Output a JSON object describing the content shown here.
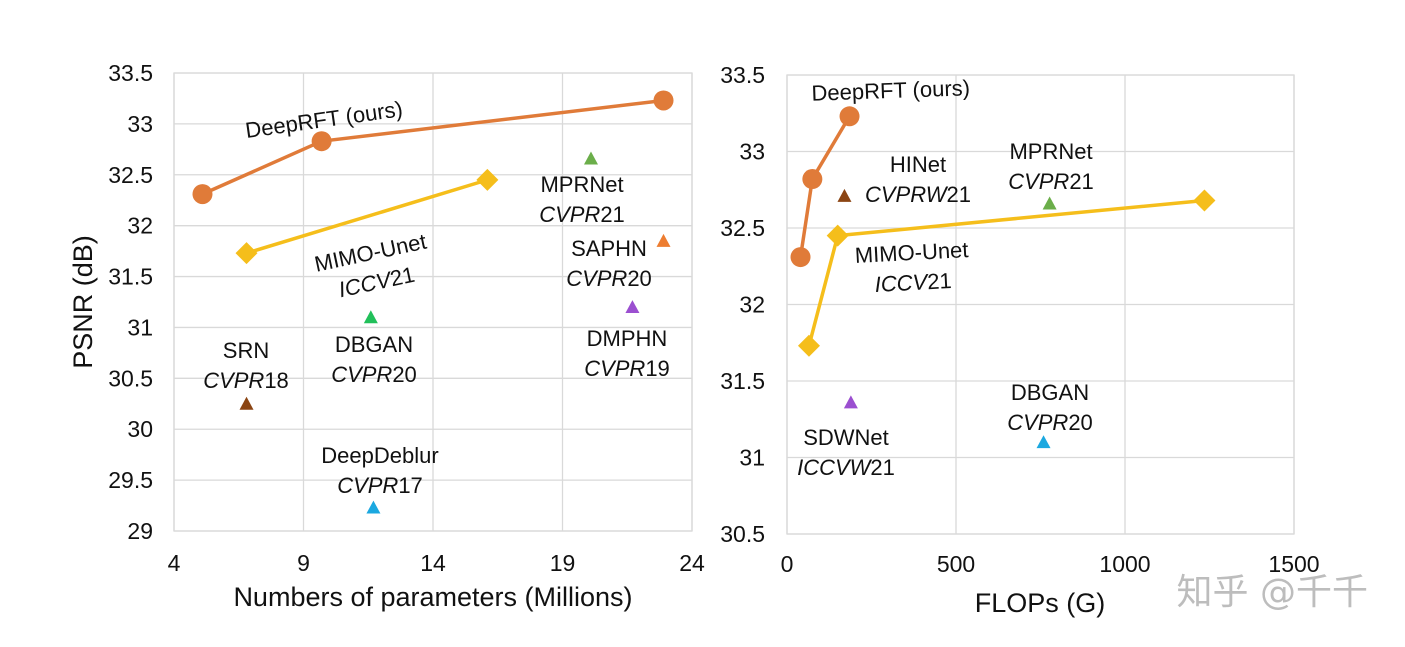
{
  "chart_data": [
    {
      "type": "scatter",
      "xlabel": "Numbers of parameters (Millions)",
      "ylabel": "PSNR (dB)",
      "xlim": [
        4,
        24
      ],
      "ylim": [
        29,
        33.5
      ],
      "xticks": [
        "4",
        "9",
        "14",
        "19",
        "24"
      ],
      "yticks": [
        "29",
        "29.5",
        "30",
        "30.5",
        "31",
        "31.5",
        "32",
        "32.5",
        "33",
        "33.5"
      ],
      "grid": true,
      "line_series": [
        {
          "name": "DeepRFT (ours)",
          "color": "#E07B39",
          "marker": "circle",
          "points": [
            [
              5.1,
              32.31
            ],
            [
              9.7,
              32.83
            ],
            [
              22.9,
              33.23
            ]
          ]
        },
        {
          "name": "MIMO-Unet",
          "venue": "ICCV21",
          "color": "#F5BE1B",
          "marker": "diamond",
          "points": [
            [
              6.8,
              31.73
            ],
            [
              16.1,
              32.45
            ]
          ]
        }
      ],
      "point_series": [
        {
          "name": "MPRNet",
          "venue": "CVPR21",
          "color": "#6BAE4A",
          "x": 20.1,
          "y": 32.66
        },
        {
          "name": "SAPHN",
          "venue": "CVPR20",
          "color": "#ED7D31",
          "x": 22.9,
          "y": 31.85
        },
        {
          "name": "DMPHN",
          "venue": "CVPR19",
          "color": "#9B4FD0",
          "x": 21.7,
          "y": 31.2
        },
        {
          "name": "DBGAN",
          "venue": "CVPR20",
          "color": "#21C05A",
          "x": 11.6,
          "y": 31.1
        },
        {
          "name": "SRN",
          "venue": "CVPR18",
          "color": "#8B4513",
          "x": 6.8,
          "y": 30.25
        },
        {
          "name": "DeepDeblur",
          "venue": "CVPR17",
          "color": "#1BA8E0",
          "x": 11.7,
          "y": 29.23
        }
      ],
      "annotations": [
        {
          "text": "DeepRFT (ours)",
          "italic": ""
        },
        {
          "text": "MIMO-Unet",
          "italic": "ICCV",
          "suffix": "21"
        },
        {
          "text": "MPRNet",
          "italic": "CVPR",
          "suffix": "21"
        },
        {
          "text": "SAPHN",
          "italic": "CVPR",
          "suffix": "20"
        },
        {
          "text": "DMPHN",
          "italic": "CVPR",
          "suffix": "19"
        },
        {
          "text": "DBGAN",
          "italic": "CVPR",
          "suffix": "20"
        },
        {
          "text": "SRN",
          "italic": "CVPR",
          "suffix": "18"
        },
        {
          "text": "DeepDeblur",
          "italic": "CVPR",
          "suffix": "17"
        }
      ]
    },
    {
      "type": "scatter",
      "xlabel": "FLOPs (G)",
      "ylabel": "",
      "xlim": [
        0,
        1500
      ],
      "ylim": [
        30.5,
        33.5
      ],
      "xticks": [
        "0",
        "500",
        "1000",
        "1500"
      ],
      "yticks": [
        "30.5",
        "31",
        "31.5",
        "32",
        "32.5",
        "33",
        "33.5"
      ],
      "grid": true,
      "line_series": [
        {
          "name": "DeepRFT (ours)",
          "color": "#E07B39",
          "marker": "circle",
          "points": [
            [
              40,
              32.31
            ],
            [
              75,
              32.82
            ],
            [
              185,
              33.23
            ]
          ]
        },
        {
          "name": "MIMO-Unet",
          "venue": "ICCV21",
          "color": "#F5BE1B",
          "marker": "diamond",
          "points": [
            [
              65,
              31.73
            ],
            [
              150,
              32.45
            ],
            [
              1235,
              32.68
            ]
          ]
        }
      ],
      "point_series": [
        {
          "name": "HINet",
          "venue": "CVPRW21",
          "color": "#8B4513",
          "x": 170,
          "y": 32.71
        },
        {
          "name": "MPRNet",
          "venue": "CVPR21",
          "color": "#6BAE4A",
          "x": 777,
          "y": 32.66
        },
        {
          "name": "SDWNet",
          "venue": "ICCVW21",
          "color": "#9B4FD0",
          "x": 189,
          "y": 31.36
        },
        {
          "name": "DBGAN",
          "venue": "CVPR20",
          "color": "#1BA8E0",
          "x": 759,
          "y": 31.1
        }
      ],
      "annotations": [
        {
          "text": "DeepRFT (ours)",
          "italic": ""
        },
        {
          "text": "HINet",
          "italic": "CVPRW",
          "suffix": "21"
        },
        {
          "text": "MPRNet",
          "italic": "CVPR",
          "suffix": "21"
        },
        {
          "text": "MIMO-Unet",
          "italic": "ICCV",
          "suffix": "21"
        },
        {
          "text": "SDWNet",
          "italic": "ICCVW",
          "suffix": "21"
        },
        {
          "text": "DBGAN",
          "italic": "CVPR",
          "suffix": "20"
        }
      ]
    }
  ],
  "watermark": "知乎 @千千"
}
